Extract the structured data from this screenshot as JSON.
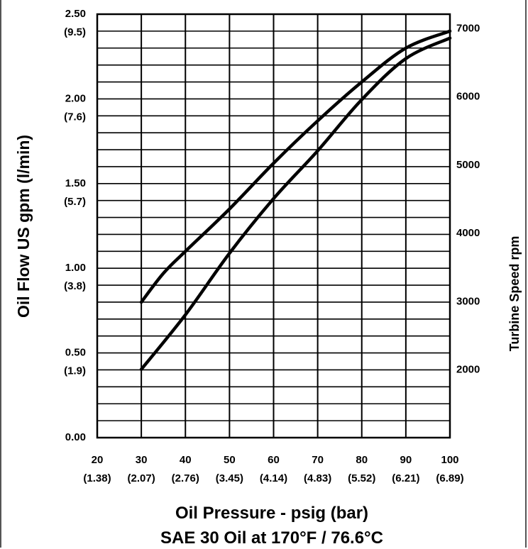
{
  "chart_data": {
    "type": "line",
    "xlabel": "Oil Pressure - psig (bar)",
    "subtitle": "SAE 30 Oil at 170°F / 76.6°C",
    "ylabel": "Oil Flow US gpm (l/min)",
    "y2label": "Turbine Speed rpm",
    "xlim": [
      20,
      100
    ],
    "ylim": [
      0,
      2.5
    ],
    "y2lim": [
      1000,
      7200
    ],
    "grid": true,
    "x_ticks": [
      {
        "value": 20,
        "label": "20",
        "sub": "(1.38)"
      },
      {
        "value": 30,
        "label": "30",
        "sub": "(2.07)"
      },
      {
        "value": 40,
        "label": "40",
        "sub": "(2.76)"
      },
      {
        "value": 50,
        "label": "50",
        "sub": "(3.45)"
      },
      {
        "value": 60,
        "label": "60",
        "sub": "(4.14)"
      },
      {
        "value": 70,
        "label": "70",
        "sub": "(4.83)"
      },
      {
        "value": 80,
        "label": "80",
        "sub": "(5.52)"
      },
      {
        "value": 90,
        "label": "90",
        "sub": "(6.21)"
      },
      {
        "value": 100,
        "label": "100",
        "sub": "(6.89)"
      }
    ],
    "y_ticks": [
      {
        "value": 0.0,
        "label": "0.00",
        "sub": ""
      },
      {
        "value": 0.5,
        "label": "0.50",
        "sub": "(1.9)"
      },
      {
        "value": 1.0,
        "label": "1.00",
        "sub": "(3.8)"
      },
      {
        "value": 1.5,
        "label": "1.50",
        "sub": "(5.7)"
      },
      {
        "value": 2.0,
        "label": "2.00",
        "sub": "(7.6)"
      },
      {
        "value": 2.5,
        "label": "2.50",
        "sub": "(9.5)"
      }
    ],
    "y2_ticks": [
      {
        "value": 2000,
        "label": "2000"
      },
      {
        "value": 3000,
        "label": "3000"
      },
      {
        "value": 4000,
        "label": "4000"
      },
      {
        "value": 5000,
        "label": "5000"
      },
      {
        "value": 6000,
        "label": "6000"
      },
      {
        "value": 7000,
        "label": "7000"
      }
    ],
    "series": [
      {
        "axis": "left",
        "x": [
          30,
          35,
          40,
          50,
          60,
          70,
          80,
          90,
          100
        ],
        "values": [
          0.8,
          0.97,
          1.1,
          1.35,
          1.62,
          1.87,
          2.1,
          2.3,
          2.4
        ]
      },
      {
        "axis": "right",
        "x": [
          30,
          40,
          50,
          60,
          70,
          80,
          90,
          100
        ],
        "values": [
          2000,
          2800,
          3700,
          4500,
          5200,
          5950,
          6550,
          6850
        ]
      }
    ]
  }
}
